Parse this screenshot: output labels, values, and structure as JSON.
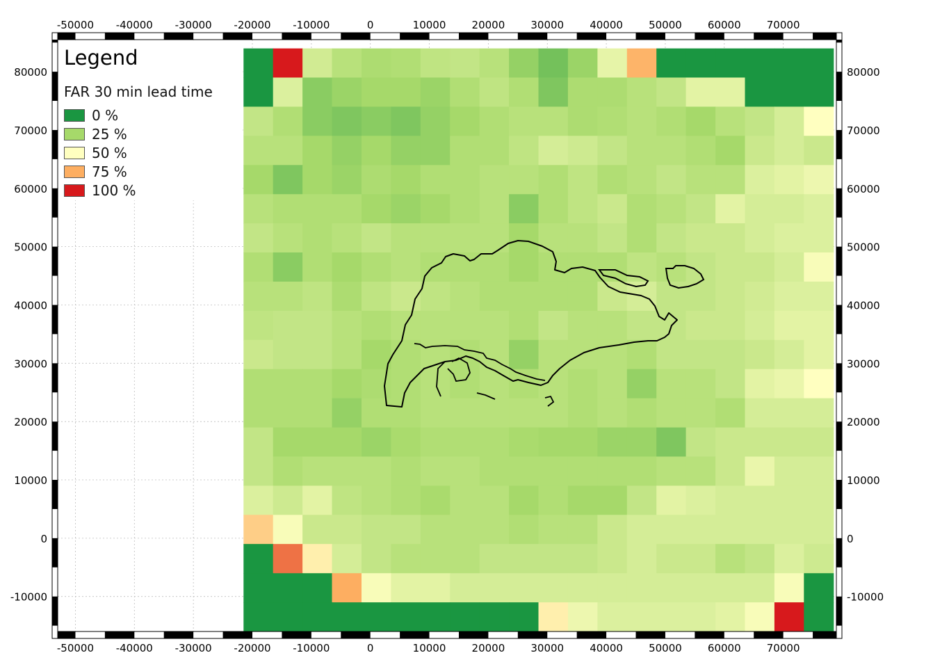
{
  "legend": {
    "title": "Legend",
    "subtitle": "FAR 30 min lead time",
    "items": [
      {
        "label": "0 %",
        "color": "#1a9641"
      },
      {
        "label": "25 %",
        "color": "#a6d96a"
      },
      {
        "label": "50 %",
        "color": "#ffffc0"
      },
      {
        "label": "75 %",
        "color": "#fdae61"
      },
      {
        "label": "100 %",
        "color": "#d7191c"
      }
    ]
  },
  "axes": {
    "x_ticks": [
      "-50000",
      "-40000",
      "-30000",
      "-20000",
      "-10000",
      "0",
      "10000",
      "20000",
      "30000",
      "40000",
      "50000",
      "60000",
      "70000"
    ],
    "y_ticks": [
      "80000",
      "70000",
      "60000",
      "50000",
      "40000",
      "30000",
      "20000",
      "10000",
      "0",
      "-10000"
    ],
    "x_range": [
      -53000,
      79000
    ],
    "y_range": [
      -16000,
      85500
    ]
  },
  "chart_data": {
    "type": "heatmap",
    "title": "",
    "variable": "FAR 30 min lead time",
    "unit": "%",
    "x_range": [
      -53000,
      79000
    ],
    "y_range": [
      -16000,
      85500
    ],
    "grid": {
      "x0": -21500,
      "y0": -16000,
      "cell_w": 5000,
      "cell_h": 5000,
      "ncols": 20,
      "nrows": 20,
      "note_rows": "rows listed from top (north) to bottom (south); values are FAR in %"
    },
    "values": [
      [
        0,
        100,
        37,
        30,
        27,
        28,
        32,
        33,
        30,
        22,
        16,
        23,
        43,
        73,
        0,
        0,
        0,
        0,
        0,
        0
      ],
      [
        0,
        40,
        20,
        23,
        25,
        25,
        23,
        28,
        32,
        28,
        18,
        27,
        27,
        30,
        33,
        42,
        42,
        0,
        0,
        0
      ],
      [
        33,
        28,
        20,
        18,
        20,
        18,
        22,
        25,
        28,
        30,
        30,
        27,
        28,
        30,
        28,
        25,
        30,
        33,
        38,
        50
      ],
      [
        30,
        30,
        25,
        22,
        25,
        22,
        22,
        28,
        28,
        32,
        38,
        36,
        33,
        30,
        30,
        28,
        25,
        35,
        38,
        35
      ],
      [
        25,
        18,
        25,
        23,
        27,
        25,
        28,
        28,
        30,
        30,
        28,
        32,
        28,
        30,
        33,
        30,
        30,
        40,
        42,
        45
      ],
      [
        30,
        28,
        28,
        28,
        25,
        23,
        25,
        28,
        30,
        20,
        28,
        32,
        35,
        28,
        30,
        33,
        42,
        38,
        38,
        40
      ],
      [
        33,
        30,
        28,
        30,
        33,
        30,
        30,
        30,
        30,
        25,
        30,
        30,
        33,
        28,
        33,
        35,
        35,
        38,
        40,
        40
      ],
      [
        28,
        20,
        28,
        25,
        28,
        30,
        28,
        28,
        28,
        25,
        28,
        28,
        28,
        32,
        30,
        33,
        35,
        35,
        38,
        48
      ],
      [
        30,
        30,
        32,
        27,
        32,
        35,
        32,
        30,
        28,
        28,
        28,
        28,
        35,
        38,
        33,
        33,
        35,
        37,
        40,
        40
      ],
      [
        32,
        33,
        33,
        30,
        28,
        30,
        30,
        30,
        30,
        28,
        33,
        30,
        30,
        33,
        33,
        35,
        35,
        38,
        42,
        42
      ],
      [
        35,
        33,
        33,
        30,
        25,
        28,
        30,
        28,
        30,
        22,
        30,
        30,
        30,
        28,
        33,
        33,
        33,
        35,
        38,
        42
      ],
      [
        28,
        28,
        28,
        25,
        27,
        28,
        30,
        28,
        30,
        28,
        30,
        28,
        30,
        22,
        30,
        30,
        33,
        42,
        44,
        50
      ],
      [
        28,
        28,
        28,
        22,
        28,
        28,
        30,
        30,
        30,
        30,
        30,
        28,
        30,
        28,
        30,
        30,
        28,
        38,
        38,
        38
      ],
      [
        33,
        25,
        25,
        25,
        23,
        26,
        28,
        28,
        28,
        26,
        25,
        25,
        23,
        23,
        18,
        33,
        35,
        35,
        35,
        35
      ],
      [
        33,
        28,
        30,
        30,
        30,
        28,
        30,
        30,
        28,
        28,
        28,
        28,
        28,
        28,
        30,
        30,
        35,
        44,
        38,
        38
      ],
      [
        40,
        36,
        42,
        32,
        30,
        28,
        26,
        30,
        30,
        25,
        28,
        25,
        25,
        33,
        42,
        40,
        38,
        38,
        38,
        38
      ],
      [
        65,
        48,
        35,
        35,
        33,
        33,
        30,
        30,
        30,
        28,
        30,
        30,
        35,
        38,
        38,
        38,
        38,
        38,
        38,
        38
      ],
      [
        0,
        85,
        55,
        38,
        33,
        30,
        30,
        30,
        33,
        33,
        33,
        33,
        35,
        38,
        35,
        35,
        30,
        33,
        40,
        36
      ],
      [
        0,
        0,
        0,
        75,
        48,
        42,
        42,
        38,
        38,
        38,
        38,
        38,
        38,
        38,
        38,
        38,
        38,
        38,
        48,
        0
      ],
      [
        0,
        0,
        0,
        0,
        0,
        0,
        0,
        0,
        0,
        0,
        55,
        45,
        40,
        40,
        40,
        40,
        42,
        48,
        100,
        0
      ]
    ]
  }
}
